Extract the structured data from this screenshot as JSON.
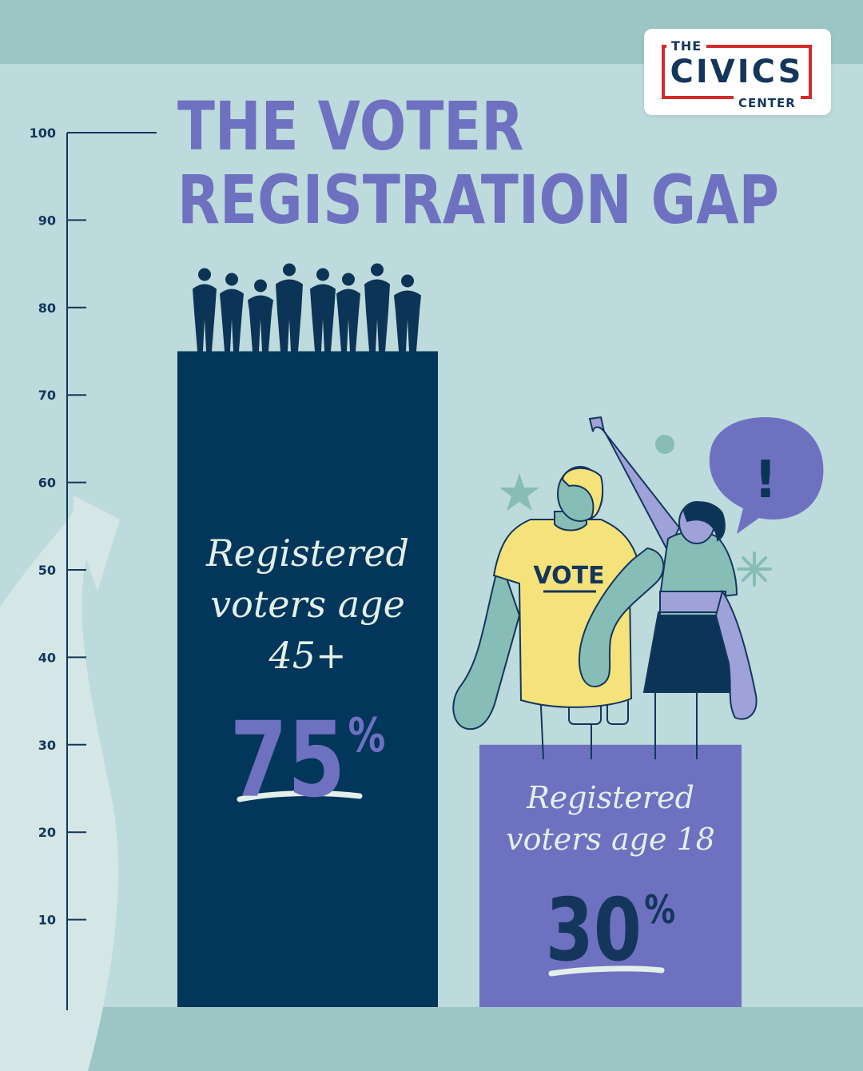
{
  "title": {
    "line1": "THE VOTER",
    "line2": "REGISTRATION GAP"
  },
  "logo": {
    "top": "THE",
    "main": "CIVICS",
    "bottom": "CENTER"
  },
  "colors": {
    "background": "#9cc6c5",
    "panel": "#bddadc",
    "bar_45": "#02365a",
    "bar_18": "#6e71c0",
    "title": "#6e71c0",
    "accent_red": "#d42b2b",
    "shirt_yellow": "#f5e27a"
  },
  "chart_data": {
    "type": "bar",
    "title": "THE VOTER REGISTRATION GAP",
    "ylim": [
      0,
      100
    ],
    "yticks": [
      10,
      20,
      30,
      40,
      50,
      60,
      70,
      80,
      90,
      100
    ],
    "grid": false,
    "legend": "none",
    "categories": [
      "Registered voters age 45+",
      "Registered voters age 18"
    ],
    "values": [
      75,
      30
    ],
    "bars": [
      {
        "label_lines": [
          "Registered",
          "voters age",
          "45+"
        ],
        "value": 75,
        "value_text": "75",
        "unit": "%",
        "color": "#02365a",
        "value_color": "#6e71c0"
      },
      {
        "label_lines": [
          "Registered",
          "voters age 18"
        ],
        "value": 30,
        "value_text": "30",
        "unit": "%",
        "color": "#6e71c0",
        "value_color": "#14365c"
      }
    ]
  },
  "illustration": {
    "shirt_text": "VOTE",
    "speech_bubble": "!",
    "icons": [
      "crowd-silhouette-icon",
      "star-icon",
      "asterisk-icon",
      "dot-icon",
      "arrow-icon"
    ]
  }
}
